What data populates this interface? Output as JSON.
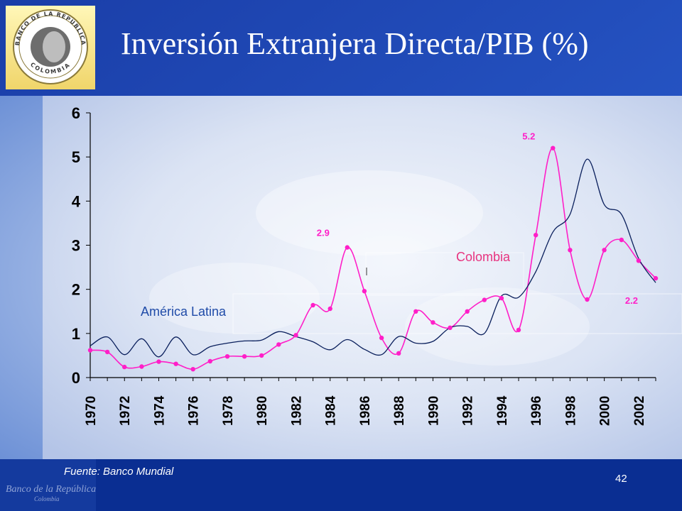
{
  "slide": {
    "title": "Inversión Extranjera Directa/PIB (%)",
    "source": "Fuente: Banco Mundial",
    "page_number": "42",
    "logo_top_text": "BANCO DE LA REPUBLICA",
    "logo_bottom_text": "COLOMBIA",
    "footer_brand": "Banco de la República",
    "footer_brand_sub": "Colombia"
  },
  "colors": {
    "background_top": "#1c3fa6",
    "plot_panel": "#e2e8f6",
    "colombia": "#ff1fc8",
    "latam": "#0a1f5c",
    "label_blue": "#1f4ba8",
    "label_pink": "#e8337f",
    "footer": "#0a2e92"
  },
  "chart_data": {
    "type": "line",
    "x": [
      1970,
      1971,
      1972,
      1973,
      1974,
      1975,
      1976,
      1977,
      1978,
      1979,
      1980,
      1981,
      1982,
      1983,
      1984,
      1985,
      1986,
      1987,
      1988,
      1989,
      1990,
      1991,
      1992,
      1993,
      1994,
      1995,
      1996,
      1997,
      1998,
      1999,
      2000,
      2001,
      2002,
      2003
    ],
    "series": [
      {
        "name": "Colombia",
        "markers": true,
        "values": [
          0.62,
          0.58,
          0.24,
          0.25,
          0.36,
          0.31,
          0.19,
          0.37,
          0.48,
          0.48,
          0.5,
          0.75,
          0.96,
          1.64,
          1.56,
          2.95,
          1.96,
          0.9,
          0.55,
          1.5,
          1.25,
          1.13,
          1.5,
          1.76,
          1.8,
          1.08,
          3.23,
          5.2,
          2.89,
          1.77,
          2.89,
          3.12,
          2.65,
          2.25
        ]
      },
      {
        "name": "América Latina",
        "markers": false,
        "values": [
          0.72,
          0.92,
          0.52,
          0.88,
          0.47,
          0.92,
          0.52,
          0.7,
          0.78,
          0.83,
          0.85,
          1.04,
          0.93,
          0.81,
          0.63,
          0.86,
          0.64,
          0.52,
          0.93,
          0.78,
          0.82,
          1.13,
          1.16,
          1.0,
          1.85,
          1.82,
          2.4,
          3.3,
          3.7,
          4.95,
          3.92,
          3.7,
          2.7,
          2.15
        ]
      }
    ],
    "data_labels": [
      {
        "text": "2.9",
        "x": 1985,
        "y": 2.95
      },
      {
        "text": "5.2",
        "x": 1997,
        "y": 5.2
      },
      {
        "text": "2.2",
        "x": 2002,
        "y": 2.25
      }
    ],
    "x_ticks": [
      "1970",
      "1972",
      "1974",
      "1976",
      "1978",
      "1980",
      "1982",
      "1984",
      "1986",
      "1988",
      "1990",
      "1992",
      "1994",
      "1996",
      "1998",
      "2000",
      "2002"
    ],
    "y_ticks": [
      "0",
      "1",
      "2",
      "3",
      "4",
      "5",
      "6"
    ],
    "xlim": [
      1970,
      2003
    ],
    "ylim": [
      0,
      6
    ],
    "grid": false,
    "legend": "inline"
  }
}
